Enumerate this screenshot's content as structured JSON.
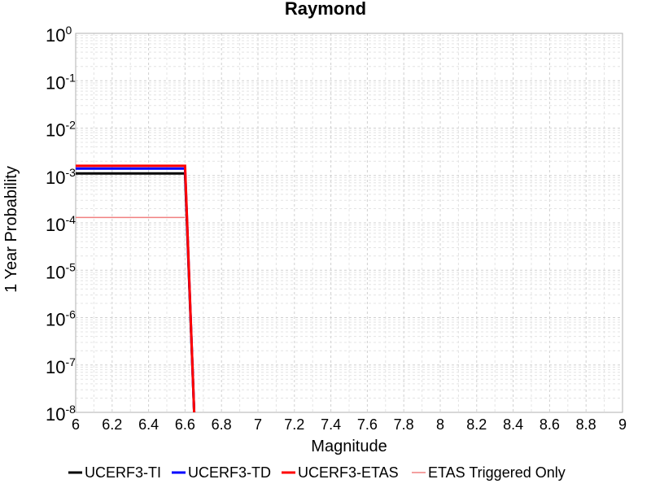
{
  "chart_data": {
    "type": "line",
    "title": "Raymond",
    "xlabel": "Magnitude",
    "ylabel": "1 Year Probability",
    "xlim": [
      6,
      9
    ],
    "ylim": [
      1e-08,
      1
    ],
    "yscale": "log",
    "grid": true,
    "legend_position": "bottom",
    "x_ticks": [
      "6",
      "6.2",
      "6.4",
      "6.6",
      "6.8",
      "7",
      "7.2",
      "7.4",
      "7.6",
      "7.8",
      "8",
      "8.2",
      "8.4",
      "8.6",
      "8.8",
      "9"
    ],
    "y_ticks": [
      {
        "base": "10",
        "exp": "0",
        "value": 1
      },
      {
        "base": "10",
        "exp": "-1",
        "value": 0.1
      },
      {
        "base": "10",
        "exp": "-2",
        "value": 0.01
      },
      {
        "base": "10",
        "exp": "-3",
        "value": 0.001
      },
      {
        "base": "10",
        "exp": "-4",
        "value": 0.0001
      },
      {
        "base": "10",
        "exp": "-5",
        "value": 1e-05
      },
      {
        "base": "10",
        "exp": "-6",
        "value": 1e-06
      },
      {
        "base": "10",
        "exp": "-7",
        "value": 1e-07
      },
      {
        "base": "10",
        "exp": "-8",
        "value": 1e-08
      }
    ],
    "series": [
      {
        "name": "UCERF3-TI",
        "color": "#000000",
        "style": "thick",
        "x": [
          6.0,
          6.6,
          6.65
        ],
        "y": [
          0.0011,
          0.0011,
          1e-09
        ]
      },
      {
        "name": "UCERF3-TD",
        "color": "#0000ff",
        "style": "thick",
        "x": [
          6.0,
          6.6,
          6.65
        ],
        "y": [
          0.0014,
          0.0014,
          1e-09
        ]
      },
      {
        "name": "UCERF3-ETAS",
        "color": "#ff0000",
        "style": "thick",
        "x": [
          6.0,
          6.6,
          6.65
        ],
        "y": [
          0.0016,
          0.0016,
          1e-09
        ]
      },
      {
        "name": "ETAS Triggered Only",
        "color": "#f08080",
        "style": "thin",
        "x": [
          6.0,
          6.6
        ],
        "y": [
          0.00013,
          0.00013
        ]
      }
    ]
  }
}
